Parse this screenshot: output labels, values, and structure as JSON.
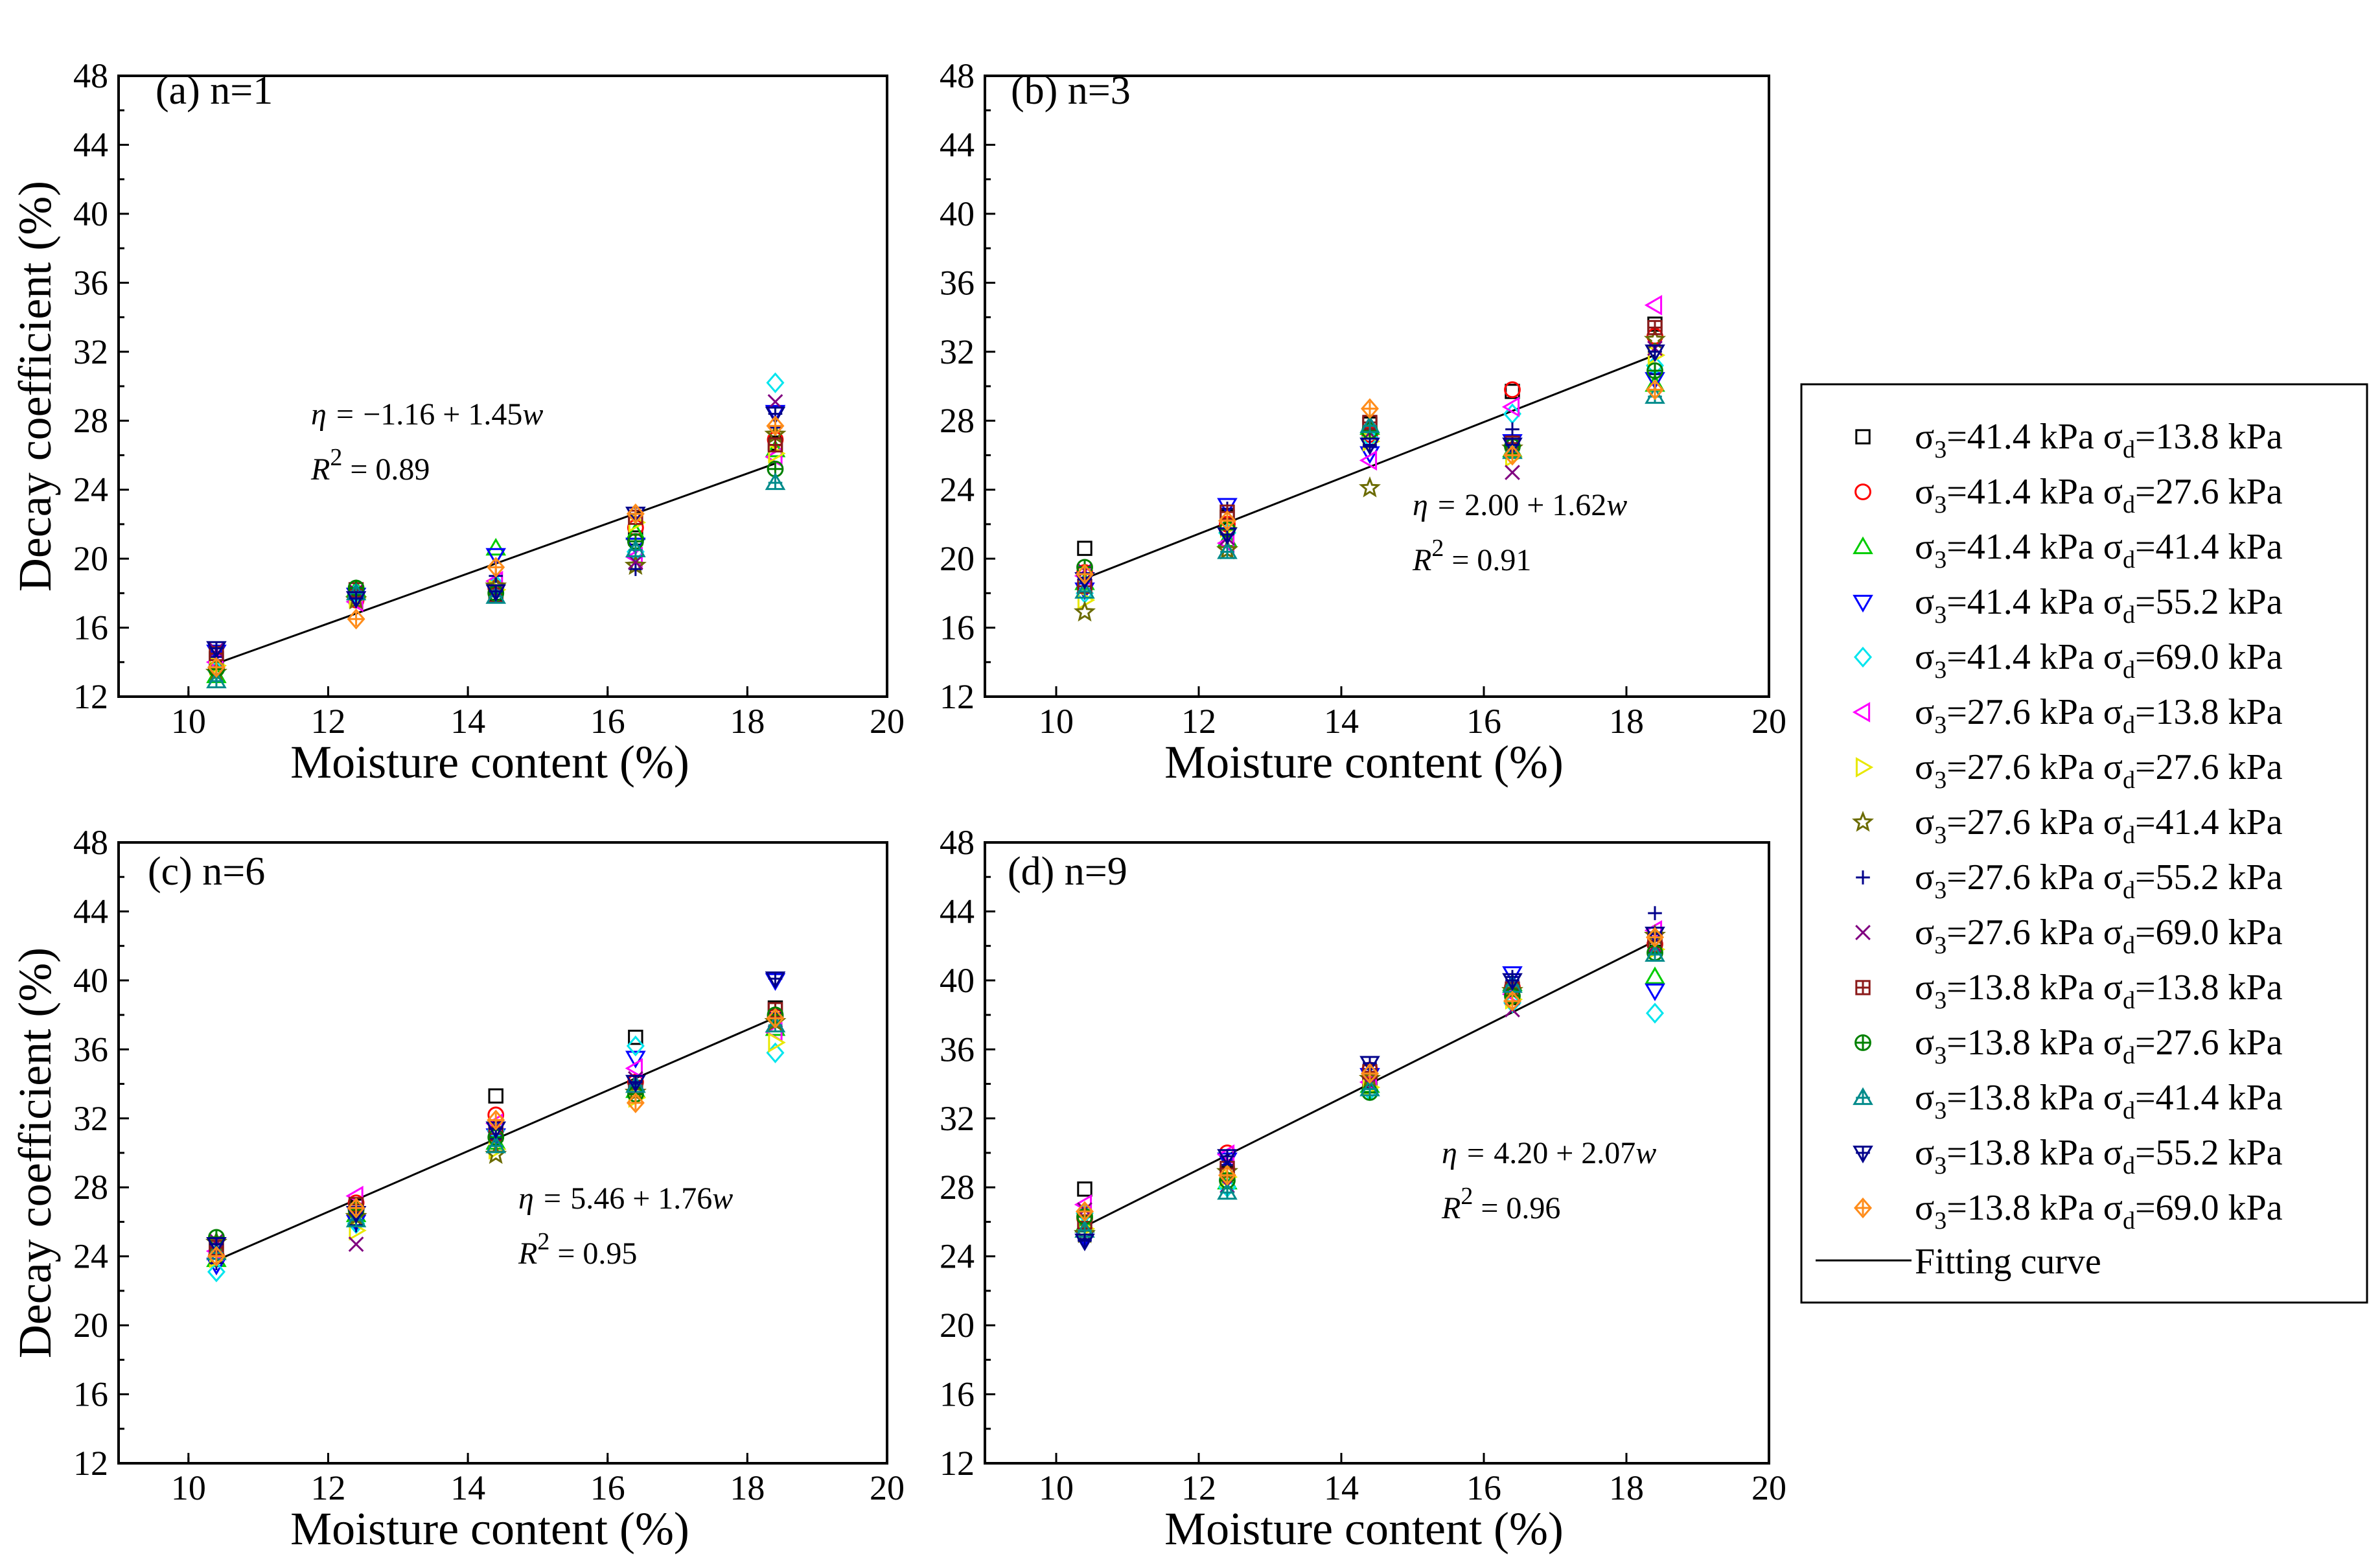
{
  "chart_data": [
    {
      "type": "scatter",
      "panel_label": "(a) n=1",
      "xlabel": "Moisture content (%)",
      "ylabel": "Decay coefficient (%)",
      "xlim": [
        9,
        20
      ],
      "ylim": [
        12,
        48
      ],
      "xticks": [
        10,
        12,
        14,
        16,
        18,
        20
      ],
      "yticks": [
        12,
        16,
        20,
        24,
        28,
        32,
        36,
        40,
        44,
        48
      ],
      "x": [
        10.4,
        12.4,
        14.4,
        16.4,
        18.4
      ],
      "series": [
        {
          "name": "σ3=41.4 kPa σd=13.8 kPa",
          "values": [
            14.2,
            17.8,
            18.0,
            21.2,
            26.7
          ]
        },
        {
          "name": "σ3=41.4 kPa σd=27.6 kPa",
          "values": [
            13.6,
            17.6,
            18.3,
            21.8,
            26.9
          ]
        },
        {
          "name": "σ3=41.4 kPa σd=41.4 kPa",
          "values": [
            13.2,
            18.2,
            20.6,
            21.5,
            26.3
          ]
        },
        {
          "name": "σ3=41.4 kPa σd=55.2 kPa",
          "values": [
            14.6,
            17.9,
            20.2,
            20.8,
            28.5
          ]
        },
        {
          "name": "σ3=41.4 kPa σd=69.0 kPa",
          "values": [
            13.5,
            18.0,
            18.5,
            20.4,
            30.2
          ]
        },
        {
          "name": "σ3=27.6 kPa σd=13.8 kPa",
          "values": [
            14.0,
            17.5,
            18.7,
            20.1,
            25.9
          ]
        },
        {
          "name": "σ3=27.6 kPa σd=27.6 kPa",
          "values": [
            13.8,
            17.7,
            18.2,
            22.1,
            26.1
          ]
        },
        {
          "name": "σ3=27.6 kPa σd=41.4 kPa",
          "values": [
            13.4,
            17.6,
            18.4,
            19.6,
            27.2
          ]
        },
        {
          "name": "σ3=27.6 kPa σd=55.2 kPa",
          "values": [
            14.3,
            17.9,
            19.0,
            19.4,
            27.6
          ]
        },
        {
          "name": "σ3=27.6 kPa σd=69.0 kPa",
          "values": [
            14.7,
            18.1,
            18.1,
            19.8,
            29.1
          ]
        },
        {
          "name": "σ3=13.8 kPa σd=13.8 kPa",
          "values": [
            14.5,
            18.2,
            17.9,
            22.4,
            26.6
          ]
        },
        {
          "name": "σ3=13.8 kPa σd=27.6 kPa",
          "values": [
            13.6,
            18.3,
            18.0,
            21.0,
            25.2
          ]
        },
        {
          "name": "σ3=13.8 kPa σd=41.4 kPa",
          "values": [
            12.9,
            18.0,
            17.8,
            20.5,
            24.4
          ]
        },
        {
          "name": "σ3=13.8 kPa σd=55.2 kPa",
          "values": [
            14.8,
            17.7,
            18.1,
            22.6,
            28.4
          ]
        },
        {
          "name": "σ3=13.8 kPa σd=69.0 kPa",
          "values": [
            13.7,
            16.5,
            19.5,
            22.6,
            27.7
          ]
        }
      ],
      "fit": {
        "intercept": -1.16,
        "slope": 1.45,
        "x_range": [
          10.4,
          18.4
        ]
      },
      "equation": {
        "prefix": "η = ",
        "value": "−1.16 + 1.45",
        "var": "w",
        "r2_label": "R",
        "r2_value": " = 0.89"
      }
    },
    {
      "type": "scatter",
      "panel_label": "(b) n=3",
      "xlabel": "Moisture content (%)",
      "ylabel": "",
      "xlim": [
        9,
        20
      ],
      "ylim": [
        12,
        48
      ],
      "xticks": [
        10,
        12,
        14,
        16,
        18,
        20
      ],
      "yticks": [
        12,
        16,
        20,
        24,
        28,
        32,
        36,
        40,
        44,
        48
      ],
      "x": [
        10.4,
        12.4,
        14.4,
        16.4,
        18.4
      ],
      "series": [
        {
          "name": "σ3=41.4 kPa σd=13.8 kPa",
          "values": [
            20.6,
            22.4,
            27.8,
            29.7,
            33.6
          ]
        },
        {
          "name": "σ3=41.4 kPa σd=27.6 kPa",
          "values": [
            19.2,
            22.0,
            27.2,
            29.8,
            32.9
          ]
        },
        {
          "name": "σ3=41.4 kPa σd=41.4 kPa",
          "values": [
            18.6,
            21.1,
            27.6,
            26.3,
            30.1
          ]
        },
        {
          "name": "σ3=41.4 kPa σd=55.2 kPa",
          "values": [
            18.2,
            23.1,
            26.1,
            26.8,
            30.4
          ]
        },
        {
          "name": "σ3=41.4 kPa σd=69.0 kPa",
          "values": [
            18.0,
            21.5,
            27.0,
            28.4,
            31.2
          ]
        },
        {
          "name": "σ3=27.6 kPa σd=13.8 kPa",
          "values": [
            19.0,
            20.9,
            25.7,
            28.8,
            34.7
          ]
        },
        {
          "name": "σ3=27.6 kPa σd=27.6 kPa",
          "values": [
            17.6,
            21.8,
            26.8,
            25.9,
            31.8
          ]
        },
        {
          "name": "σ3=27.6 kPa σd=41.4 kPa",
          "values": [
            16.9,
            20.5,
            24.1,
            26.4,
            32.7
          ]
        },
        {
          "name": "σ3=27.6 kPa σd=55.2 kPa",
          "values": [
            18.9,
            22.9,
            26.5,
            27.5,
            30.7
          ]
        },
        {
          "name": "σ3=27.6 kPa σd=69.0 kPa",
          "values": [
            19.3,
            21.2,
            27.3,
            25.0,
            32.2
          ]
        },
        {
          "name": "σ3=13.8 kPa σd=13.8 kPa",
          "values": [
            18.4,
            22.7,
            27.9,
            26.7,
            33.4
          ]
        },
        {
          "name": "σ3=13.8 kPa σd=27.6 kPa",
          "values": [
            19.5,
            21.7,
            27.4,
            26.5,
            30.9
          ]
        },
        {
          "name": "σ3=13.8 kPa σd=41.4 kPa",
          "values": [
            18.1,
            20.4,
            27.7,
            26.2,
            29.4
          ]
        },
        {
          "name": "σ3=13.8 kPa σd=55.2 kPa",
          "values": [
            18.8,
            21.4,
            26.6,
            26.6,
            32.0
          ]
        },
        {
          "name": "σ3=13.8 kPa σd=69.0 kPa",
          "values": [
            19.1,
            22.2,
            28.7,
            26.0,
            29.8
          ]
        }
      ],
      "fit": {
        "intercept": 2.0,
        "slope": 1.62,
        "x_range": [
          10.4,
          18.4
        ]
      },
      "equation": {
        "prefix": "η = ",
        "value": "2.00 + 1.62",
        "var": "w",
        "r2_label": "R",
        "r2_value": " = 0.91"
      }
    },
    {
      "type": "scatter",
      "panel_label": "(c) n=6",
      "xlabel": "Moisture content (%)",
      "ylabel": "Decay coefficient (%)",
      "xlim": [
        9,
        20
      ],
      "ylim": [
        12,
        48
      ],
      "xticks": [
        10,
        12,
        14,
        16,
        18,
        20
      ],
      "yticks": [
        12,
        16,
        20,
        24,
        28,
        32,
        36,
        40,
        44,
        48
      ],
      "x": [
        10.4,
        12.4,
        14.4,
        16.4,
        18.4
      ],
      "series": [
        {
          "name": "σ3=41.4 kPa σd=13.8 kPa",
          "values": [
            24.6,
            26.9,
            33.3,
            36.7,
            38.4
          ]
        },
        {
          "name": "σ3=41.4 kPa σd=27.6 kPa",
          "values": [
            24.0,
            27.1,
            32.2,
            34.1,
            37.9
          ]
        },
        {
          "name": "σ3=41.4 kPa σd=41.4 kPa",
          "values": [
            23.8,
            26.4,
            30.6,
            33.6,
            37.2
          ]
        },
        {
          "name": "σ3=41.4 kPa σd=55.2 kPa",
          "values": [
            23.5,
            26.0,
            31.0,
            35.5,
            40.0
          ]
        },
        {
          "name": "σ3=41.4 kPa σd=69.0 kPa",
          "values": [
            23.1,
            25.9,
            31.3,
            36.2,
            35.8
          ]
        },
        {
          "name": "σ3=27.6 kPa σd=13.8 kPa",
          "values": [
            24.3,
            27.5,
            31.7,
            34.9,
            37.0
          ]
        },
        {
          "name": "σ3=27.6 kPa σd=27.6 kPa",
          "values": [
            23.9,
            25.5,
            30.2,
            33.2,
            36.4
          ]
        },
        {
          "name": "σ3=27.6 kPa σd=41.4 kPa",
          "values": [
            24.8,
            26.3,
            29.9,
            33.5,
            37.6
          ]
        },
        {
          "name": "σ3=27.6 kPa σd=55.2 kPa",
          "values": [
            23.6,
            25.8,
            30.8,
            34.0,
            38.1
          ]
        },
        {
          "name": "σ3=27.6 kPa σd=69.0 kPa",
          "values": [
            24.9,
            24.7,
            31.5,
            34.3,
            37.7
          ]
        },
        {
          "name": "σ3=13.8 kPa σd=13.8 kPa",
          "values": [
            24.5,
            27.0,
            31.1,
            33.8,
            38.3
          ]
        },
        {
          "name": "σ3=13.8 kPa σd=27.6 kPa",
          "values": [
            25.1,
            26.7,
            30.9,
            33.4,
            38.0
          ]
        },
        {
          "name": "σ3=13.8 kPa σd=41.4 kPa",
          "values": [
            24.2,
            26.1,
            30.4,
            33.9,
            37.4
          ]
        },
        {
          "name": "σ3=13.8 kPa σd=55.2 kPa",
          "values": [
            24.7,
            26.5,
            31.4,
            34.1,
            40.1
          ]
        },
        {
          "name": "σ3=13.8 kPa σd=69.0 kPa",
          "values": [
            24.0,
            26.8,
            31.9,
            32.9,
            37.8
          ]
        }
      ],
      "fit": {
        "intercept": 5.46,
        "slope": 1.76,
        "x_range": [
          10.4,
          18.4
        ]
      },
      "equation": {
        "prefix": "η = ",
        "value": "5.46 + 1.76",
        "var": "w",
        "r2_label": "R",
        "r2_value": " = 0.95"
      }
    },
    {
      "type": "scatter",
      "panel_label": "(d) n=9",
      "xlabel": "Moisture content (%)",
      "ylabel": "",
      "xlim": [
        9,
        20
      ],
      "ylim": [
        12,
        48
      ],
      "xticks": [
        10,
        12,
        14,
        16,
        18,
        20
      ],
      "yticks": [
        12,
        16,
        20,
        24,
        28,
        32,
        36,
        40,
        44,
        48
      ],
      "x": [
        10.4,
        12.4,
        14.4,
        16.4,
        18.4
      ],
      "series": [
        {
          "name": "σ3=41.4 kPa σd=13.8 kPa",
          "values": [
            27.9,
            28.8,
            34.2,
            39.0,
            42.4
          ]
        },
        {
          "name": "σ3=41.4 kPa σd=27.6 kPa",
          "values": [
            26.2,
            30.0,
            34.8,
            39.6,
            42.1
          ]
        },
        {
          "name": "σ3=41.4 kPa σd=41.4 kPa",
          "values": [
            25.8,
            28.3,
            33.9,
            39.8,
            40.2
          ]
        },
        {
          "name": "σ3=41.4 kPa σd=55.2 kPa",
          "values": [
            25.1,
            29.6,
            34.5,
            40.4,
            39.4
          ]
        },
        {
          "name": "σ3=41.4 kPa σd=69.0 kPa",
          "values": [
            26.5,
            28.0,
            33.6,
            38.7,
            38.1
          ]
        },
        {
          "name": "σ3=27.6 kPa σd=13.8 kPa",
          "values": [
            27.0,
            29.9,
            34.1,
            39.2,
            42.9
          ]
        },
        {
          "name": "σ3=27.6 kPa σd=27.6 kPa",
          "values": [
            25.6,
            28.6,
            33.8,
            38.9,
            41.8
          ]
        },
        {
          "name": "σ3=27.6 kPa σd=41.4 kPa",
          "values": [
            25.3,
            28.9,
            34.3,
            39.4,
            42.6
          ]
        },
        {
          "name": "σ3=27.6 kPa σd=55.2 kPa",
          "values": [
            25.0,
            29.3,
            35.1,
            40.2,
            43.9
          ]
        },
        {
          "name": "σ3=27.6 kPa σd=69.0 kPa",
          "values": [
            26.7,
            28.1,
            34.0,
            38.3,
            42.0
          ]
        },
        {
          "name": "σ3=13.8 kPa σd=13.8 kPa",
          "values": [
            26.0,
            29.1,
            34.7,
            39.5,
            42.3
          ]
        },
        {
          "name": "σ3=13.8 kPa σd=27.6 kPa",
          "values": [
            26.3,
            28.4,
            33.5,
            39.1,
            41.6
          ]
        },
        {
          "name": "σ3=13.8 kPa σd=41.4 kPa",
          "values": [
            25.5,
            27.7,
            33.7,
            39.7,
            41.5
          ]
        },
        {
          "name": "σ3=13.8 kPa σd=55.2 kPa",
          "values": [
            24.9,
            29.8,
            35.2,
            40.0,
            42.7
          ]
        },
        {
          "name": "σ3=13.8 kPa σd=69.0 kPa",
          "values": [
            26.6,
            28.7,
            34.6,
            38.8,
            42.5
          ]
        }
      ],
      "fit": {
        "intercept": 4.2,
        "slope": 2.07,
        "x_range": [
          10.4,
          18.4
        ]
      },
      "equation": {
        "prefix": "η = ",
        "value": "4.20 + 2.07",
        "var": "w",
        "r2_label": "R",
        "r2_value": " = 0.96"
      }
    }
  ],
  "legend": {
    "entries": [
      {
        "s3": "41.4",
        "sd": "13.8",
        "marker": "square",
        "color": "#000000"
      },
      {
        "s3": "41.4",
        "sd": "27.6",
        "marker": "circle",
        "color": "#ff0000"
      },
      {
        "s3": "41.4",
        "sd": "41.4",
        "marker": "triangle-up",
        "color": "#00cc00"
      },
      {
        "s3": "41.4",
        "sd": "55.2",
        "marker": "triangle-down",
        "color": "#0000ff"
      },
      {
        "s3": "41.4",
        "sd": "69.0",
        "marker": "diamond",
        "color": "#00e5ee"
      },
      {
        "s3": "27.6",
        "sd": "13.8",
        "marker": "triangle-left",
        "color": "#ff00ff"
      },
      {
        "s3": "27.6",
        "sd": "27.6",
        "marker": "triangle-right",
        "color": "#e8e800"
      },
      {
        "s3": "27.6",
        "sd": "41.4",
        "marker": "star",
        "color": "#6b6b00"
      },
      {
        "s3": "27.6",
        "sd": "55.2",
        "marker": "plus",
        "color": "#00008b"
      },
      {
        "s3": "27.6",
        "sd": "69.0",
        "marker": "cross",
        "color": "#800080"
      },
      {
        "s3": "13.8",
        "sd": "13.8",
        "marker": "square-plus",
        "color": "#8b1a1a"
      },
      {
        "s3": "13.8",
        "sd": "27.6",
        "marker": "circle-plus",
        "color": "#008000"
      },
      {
        "s3": "13.8",
        "sd": "41.4",
        "marker": "triangle-up-plus",
        "color": "#008b8b"
      },
      {
        "s3": "13.8",
        "sd": "55.2",
        "marker": "triangle-down-plus",
        "color": "#00008b"
      },
      {
        "s3": "13.8",
        "sd": "69.0",
        "marker": "diamond-plus",
        "color": "#ff8c1a"
      }
    ],
    "sigma": "σ",
    "sub3": "3",
    "subd": "d",
    "unit": " kPa",
    "fit_label": "Fitting curve"
  }
}
